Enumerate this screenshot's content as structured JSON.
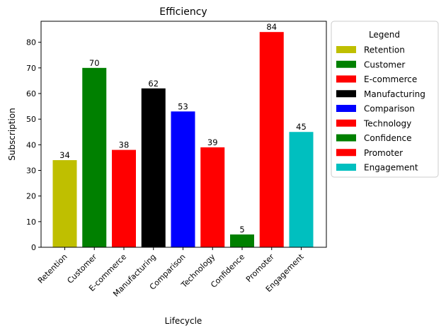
{
  "chart_data": {
    "type": "bar",
    "title": "Efficiency",
    "xlabel": "Lifecycle",
    "ylabel": "Subscription",
    "categories": [
      "Retention",
      "Customer",
      "E-commerce",
      "Manufacturing",
      "Comparison",
      "Technology",
      "Confidence",
      "Promoter",
      "Engagement"
    ],
    "values": [
      34,
      70,
      38,
      62,
      53,
      39,
      5,
      84,
      45
    ],
    "colors": [
      "#bfbf00",
      "#008000",
      "#ff0000",
      "#000000",
      "#0000ff",
      "#ff0000",
      "#008000",
      "#ff0000",
      "#00bfbf"
    ],
    "ylim": [
      0,
      88.2
    ],
    "yticks": [
      0,
      10,
      20,
      30,
      40,
      50,
      60,
      70,
      80
    ],
    "grid": false,
    "legend": {
      "title": "Legend",
      "placement": "outside-right",
      "entries": [
        "Retention",
        "Customer",
        "E-commerce",
        "Manufacturing",
        "Comparison",
        "Technology",
        "Confidence",
        "Promoter",
        "Engagement"
      ]
    }
  }
}
